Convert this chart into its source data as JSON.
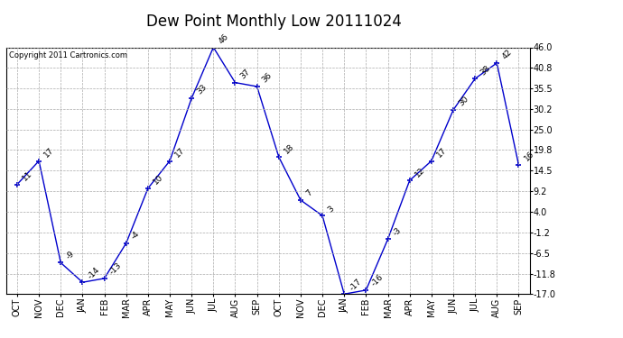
{
  "title": "Dew Point Monthly Low 20111024",
  "copyright": "Copyright 2011 Cartronics.com",
  "months": [
    "OCT",
    "NOV",
    "DEC",
    "JAN",
    "FEB",
    "MAR",
    "APR",
    "MAY",
    "JUN",
    "JUL",
    "AUG",
    "SEP",
    "OCT",
    "NOV",
    "DEC",
    "JAN",
    "FEB",
    "MAR",
    "APR",
    "MAY",
    "JUN",
    "JUL",
    "AUG",
    "SEP"
  ],
  "values": [
    11,
    17,
    -9,
    -14,
    -13,
    -4,
    10,
    17,
    33,
    46,
    37,
    36,
    18,
    7,
    3,
    -17,
    -16,
    -3,
    12,
    17,
    30,
    38,
    42,
    16
  ],
  "ylim": [
    -17,
    46
  ],
  "yticks": [
    -17.0,
    -11.8,
    -6.5,
    -1.2,
    4.0,
    9.2,
    14.5,
    19.8,
    25.0,
    30.2,
    35.5,
    40.8,
    46.0
  ],
  "ytick_labels": [
    "-17.0",
    "-11.8",
    "-6.5",
    "-1.2",
    "4.0",
    "9.2",
    "14.5",
    "19.8",
    "25.0",
    "30.2",
    "35.5",
    "40.8",
    "46.0"
  ],
  "line_color": "#0000cc",
  "marker": "+",
  "bg_color": "#ffffff",
  "grid_color": "#aaaaaa",
  "title_fontsize": 12,
  "label_fontsize": 7,
  "annot_fontsize": 6.5,
  "copyright_fontsize": 6
}
